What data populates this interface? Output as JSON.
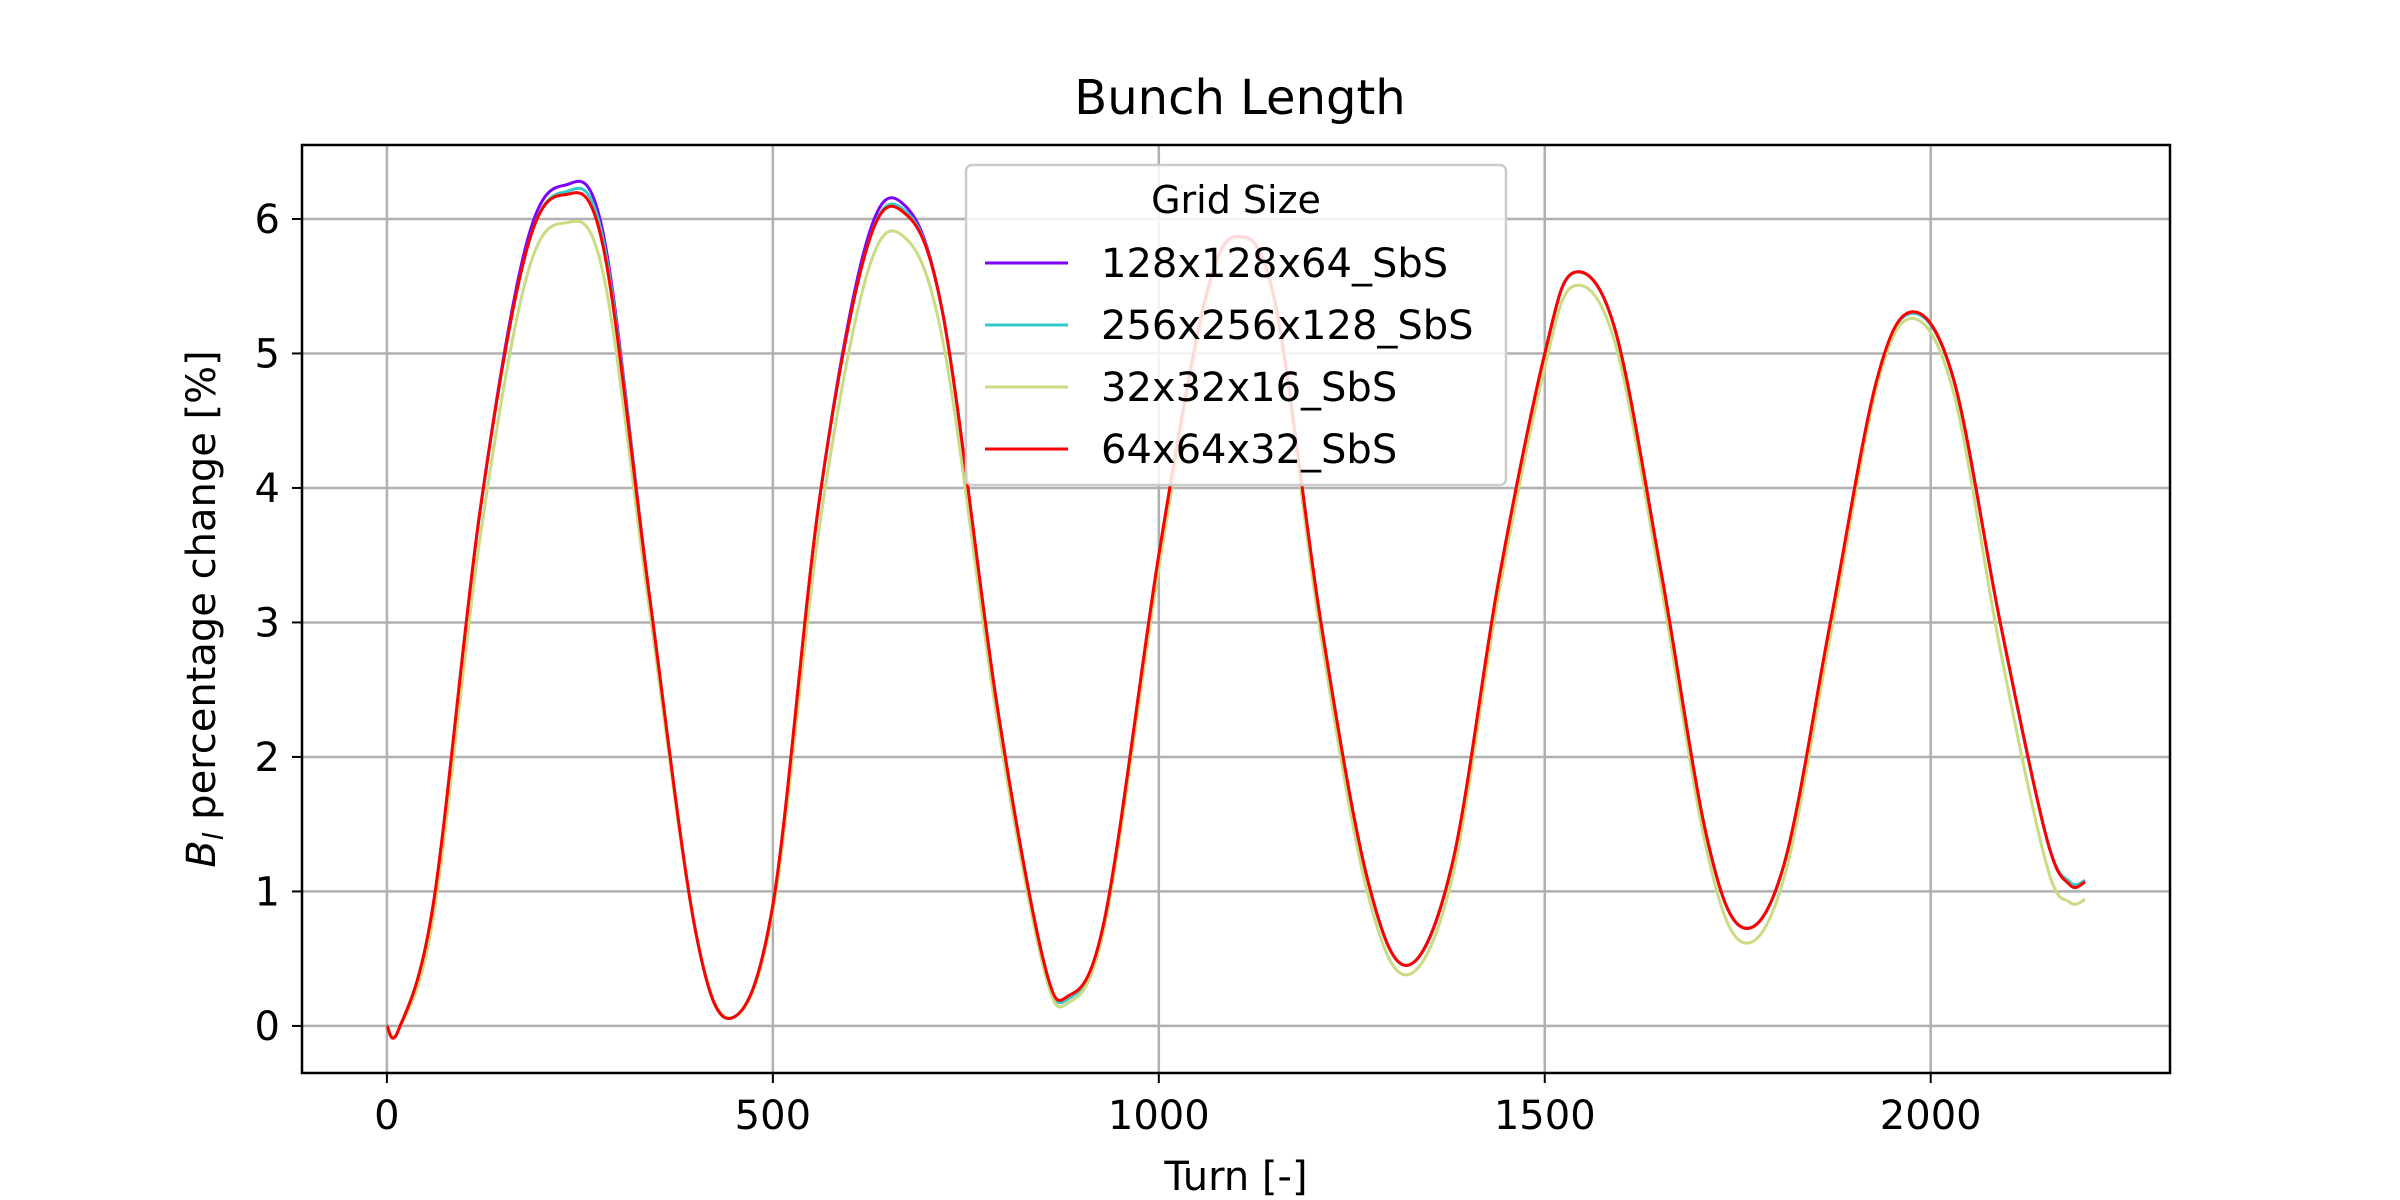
{
  "chart_data": {
    "type": "line",
    "title": "Bunch Length",
    "xlabel": "Turn [-]",
    "ylabel_main": "B",
    "ylabel_sub": "l",
    "ylabel_rest": " percentage change [%]",
    "xlim": [
      -110,
      2310
    ],
    "ylim": [
      -0.35,
      6.55
    ],
    "xticks": [
      0,
      500,
      1000,
      1500,
      2000
    ],
    "yticks": [
      0,
      1,
      2,
      3,
      4,
      5,
      6
    ],
    "grid": true,
    "legend": {
      "title": "Grid Size",
      "position": "upper center"
    },
    "series": [
      {
        "name": "128x128x64_SbS",
        "color": "#7f00ff",
        "x": [
          0,
          15,
          60,
          120,
          180,
          230,
          280,
          340,
          400,
          447,
          500,
          560,
          620,
          667,
          720,
          790,
          850,
          882,
          930,
          1000,
          1060,
          1102,
          1150,
          1210,
          1270,
          1322,
          1380,
          1440,
          1500,
          1537,
          1590,
          1650,
          1710,
          1757,
          1810,
          1870,
          1930,
          1977,
          2030,
          2090,
          2150,
          2180,
          2200
        ],
        "y": [
          0,
          -0.03,
          0.9,
          3.8,
          5.8,
          6.25,
          5.9,
          3.2,
          0.7,
          0.06,
          0.9,
          3.9,
          5.8,
          6.12,
          5.3,
          2.4,
          0.5,
          0.2,
          0.8,
          3.5,
          5.4,
          5.87,
          5.4,
          3.0,
          1.1,
          0.45,
          1.2,
          3.3,
          5.0,
          5.6,
          5.2,
          3.4,
          1.4,
          0.73,
          1.2,
          3.0,
          4.8,
          5.3,
          4.8,
          3.0,
          1.4,
          1.07,
          1.08
        ]
      },
      {
        "name": "256x256x128_SbS",
        "color": "#33cccc",
        "x": [
          0,
          15,
          60,
          120,
          180,
          230,
          280,
          340,
          400,
          447,
          500,
          560,
          620,
          667,
          720,
          790,
          850,
          882,
          930,
          1000,
          1060,
          1102,
          1150,
          1210,
          1270,
          1322,
          1380,
          1440,
          1500,
          1537,
          1590,
          1650,
          1710,
          1757,
          1810,
          1870,
          1930,
          1977,
          2030,
          2090,
          2150,
          2180,
          2200
        ],
        "y": [
          0,
          -0.03,
          0.9,
          3.8,
          5.75,
          6.2,
          5.85,
          3.2,
          0.7,
          0.06,
          0.9,
          3.9,
          5.75,
          6.08,
          5.3,
          2.4,
          0.5,
          0.2,
          0.8,
          3.5,
          5.4,
          5.87,
          5.4,
          3.0,
          1.1,
          0.45,
          1.2,
          3.3,
          5.0,
          5.6,
          5.2,
          3.4,
          1.4,
          0.73,
          1.2,
          3.0,
          4.8,
          5.3,
          4.8,
          3.0,
          1.4,
          1.07,
          1.08
        ]
      },
      {
        "name": "32x32x16_SbS",
        "color": "#c8dc82",
        "x": [
          0,
          15,
          60,
          120,
          180,
          230,
          280,
          340,
          400,
          447,
          500,
          560,
          620,
          667,
          720,
          790,
          850,
          882,
          930,
          1000,
          1060,
          1102,
          1150,
          1210,
          1270,
          1322,
          1380,
          1440,
          1500,
          1537,
          1590,
          1650,
          1710,
          1757,
          1810,
          1870,
          1930,
          1977,
          2030,
          2090,
          2150,
          2180,
          2200
        ],
        "y": [
          0,
          -0.03,
          0.8,
          3.6,
          5.55,
          5.97,
          5.6,
          3.1,
          0.7,
          0.06,
          0.85,
          3.7,
          5.55,
          5.88,
          5.1,
          2.3,
          0.45,
          0.17,
          0.75,
          3.4,
          5.35,
          5.86,
          5.35,
          2.9,
          1.0,
          0.38,
          1.1,
          3.2,
          4.9,
          5.5,
          5.1,
          3.3,
          1.3,
          0.62,
          1.1,
          2.9,
          4.75,
          5.26,
          4.7,
          2.8,
          1.2,
          0.92,
          0.94
        ]
      },
      {
        "name": "64x64x32_SbS",
        "color": "#ff0000",
        "x": [
          0,
          15,
          60,
          120,
          180,
          230,
          280,
          340,
          400,
          447,
          500,
          560,
          620,
          667,
          720,
          790,
          850,
          882,
          930,
          1000,
          1060,
          1102,
          1150,
          1210,
          1270,
          1322,
          1380,
          1440,
          1500,
          1537,
          1590,
          1650,
          1710,
          1757,
          1810,
          1870,
          1930,
          1977,
          2030,
          2090,
          2150,
          2180,
          2200
        ],
        "y": [
          0,
          -0.03,
          0.9,
          3.8,
          5.75,
          6.18,
          5.8,
          3.2,
          0.7,
          0.06,
          0.9,
          3.9,
          5.75,
          6.06,
          5.3,
          2.4,
          0.5,
          0.22,
          0.8,
          3.5,
          5.4,
          5.87,
          5.4,
          3.0,
          1.1,
          0.45,
          1.2,
          3.3,
          5.0,
          5.6,
          5.2,
          3.4,
          1.4,
          0.73,
          1.2,
          3.0,
          4.8,
          5.31,
          4.8,
          3.0,
          1.4,
          1.05,
          1.07
        ]
      }
    ]
  }
}
